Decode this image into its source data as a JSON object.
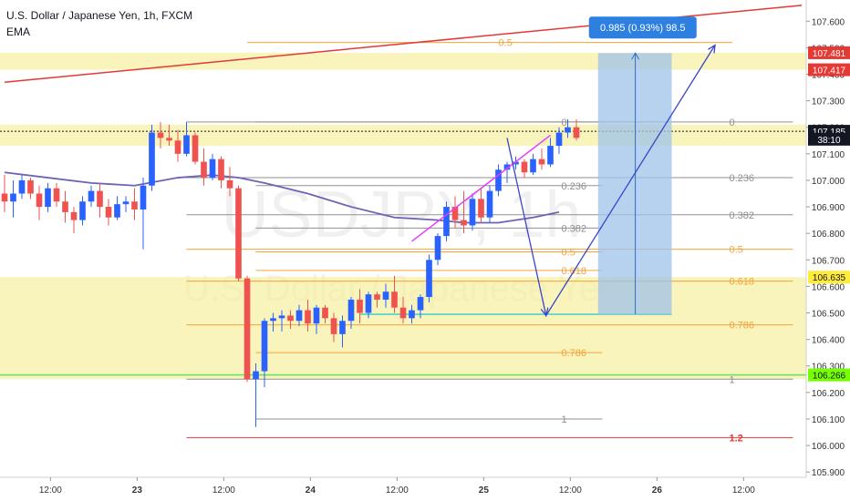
{
  "header": {
    "symbol": "U.S. Dollar / Japanese Yen, 1h, FXCM",
    "indicator": "EMA"
  },
  "watermark": {
    "ticker": "USDJPY, 1h",
    "name": "U.S. Dollar / Japanese Yen"
  },
  "colors": {
    "bull": "#2962ff",
    "bear": "#ef5350",
    "zone": "#f3ec8f",
    "ema": "#6c63b4",
    "fib": "#909090",
    "fib_orange": "#f5a33a",
    "trend_red": "#e53935",
    "wedge": "#e040fb",
    "projection": "#3946c8",
    "target_box": "#9fc3e9",
    "green_level": "#59e85b",
    "axis_text": "#333333"
  },
  "chart_data": {
    "type": "candlestick",
    "ylim": [
      105.88,
      107.68
    ],
    "y_ticks": [
      "107.600",
      "107.500",
      "107.400",
      "107.300",
      "107.200",
      "107.100",
      "107.000",
      "106.900",
      "106.800",
      "106.700",
      "106.600",
      "106.500",
      "106.400",
      "106.300",
      "106.200",
      "106.100",
      "106.000",
      "105.900"
    ],
    "x_ticks": [
      {
        "label": "12:00",
        "index": 5.3
      },
      {
        "label": "23",
        "index": 15.3
      },
      {
        "label": "12:00",
        "index": 25.3
      },
      {
        "label": "24",
        "index": 35.3
      },
      {
        "label": "12:00",
        "index": 45.3
      },
      {
        "label": "25",
        "index": 55.3
      },
      {
        "label": "12:00",
        "index": 65.3
      },
      {
        "label": "26",
        "index": 75.3
      },
      {
        "label": "12:00",
        "index": 85.3
      }
    ],
    "index_range": [
      0,
      92
    ],
    "candles": [
      [
        106.95,
        107.02,
        106.88,
        106.92
      ],
      [
        106.92,
        107.0,
        106.86,
        106.95
      ],
      [
        106.95,
        107.02,
        106.93,
        107.0
      ],
      [
        107.0,
        107.01,
        106.93,
        106.95
      ],
      [
        106.95,
        106.98,
        106.85,
        106.9
      ],
      [
        106.9,
        106.99,
        106.88,
        106.97
      ],
      [
        106.97,
        106.99,
        106.9,
        106.92
      ],
      [
        106.92,
        106.96,
        106.84,
        106.88
      ],
      [
        106.88,
        106.9,
        106.8,
        106.85
      ],
      [
        106.85,
        106.94,
        106.83,
        106.92
      ],
      [
        106.92,
        106.98,
        106.9,
        106.96
      ],
      [
        106.96,
        106.99,
        106.86,
        106.9
      ],
      [
        106.9,
        106.93,
        106.83,
        106.86
      ],
      [
        106.86,
        106.94,
        106.85,
        106.91
      ],
      [
        106.91,
        106.94,
        106.88,
        106.92
      ],
      [
        106.92,
        106.97,
        106.85,
        106.89
      ],
      [
        106.89,
        107.01,
        106.74,
        106.98
      ],
      [
        106.98,
        107.21,
        106.96,
        107.18
      ],
      [
        107.18,
        107.22,
        107.12,
        107.16
      ],
      [
        107.16,
        107.21,
        107.13,
        107.15
      ],
      [
        107.15,
        107.19,
        107.07,
        107.1
      ],
      [
        107.1,
        107.22,
        107.09,
        107.17
      ],
      [
        107.17,
        107.18,
        107.06,
        107.07
      ],
      [
        107.07,
        107.12,
        106.98,
        107.01
      ],
      [
        107.01,
        107.1,
        107.0,
        107.08
      ],
      [
        107.08,
        107.09,
        106.97,
        107.0
      ],
      [
        107.0,
        107.05,
        106.94,
        106.97
      ],
      [
        106.97,
        106.98,
        106.62,
        106.63
      ],
      [
        106.63,
        106.64,
        106.24,
        106.25
      ],
      [
        106.25,
        106.31,
        106.07,
        106.28
      ],
      [
        106.28,
        106.48,
        106.22,
        106.47
      ],
      [
        106.47,
        106.5,
        106.43,
        106.48
      ],
      [
        106.48,
        106.51,
        106.43,
        106.49
      ],
      [
        106.49,
        106.51,
        106.44,
        106.47
      ],
      [
        106.47,
        106.53,
        106.45,
        106.51
      ],
      [
        106.51,
        106.55,
        106.43,
        106.46
      ],
      [
        106.46,
        106.53,
        106.42,
        106.52
      ],
      [
        106.52,
        106.53,
        106.46,
        106.48
      ],
      [
        106.48,
        106.5,
        106.39,
        106.42
      ],
      [
        106.42,
        106.49,
        106.37,
        106.47
      ],
      [
        106.47,
        106.56,
        106.44,
        106.55
      ],
      [
        106.55,
        106.59,
        106.46,
        106.5
      ],
      [
        106.5,
        106.58,
        106.48,
        106.57
      ],
      [
        106.57,
        106.58,
        106.52,
        106.55
      ],
      [
        106.55,
        106.61,
        106.52,
        106.58
      ],
      [
        106.58,
        106.64,
        106.5,
        106.52
      ],
      [
        106.52,
        106.56,
        106.46,
        106.48
      ],
      [
        106.48,
        106.53,
        106.46,
        106.51
      ],
      [
        106.51,
        106.57,
        106.48,
        106.56
      ],
      [
        106.56,
        106.72,
        106.54,
        106.7
      ],
      [
        106.7,
        106.8,
        106.68,
        106.79
      ],
      [
        106.79,
        106.92,
        106.77,
        106.9
      ],
      [
        106.9,
        106.94,
        106.82,
        106.85
      ],
      [
        106.85,
        106.96,
        106.8,
        106.83
      ],
      [
        106.83,
        106.95,
        106.81,
        106.93
      ],
      [
        106.93,
        106.97,
        106.84,
        106.86
      ],
      [
        106.86,
        106.98,
        106.84,
        106.96
      ],
      [
        106.96,
        107.06,
        106.94,
        107.04
      ],
      [
        107.04,
        107.07,
        106.99,
        107.06
      ],
      [
        107.06,
        107.09,
        107.04,
        107.07
      ],
      [
        107.07,
        107.08,
        107.01,
        107.03
      ],
      [
        107.03,
        107.1,
        107.02,
        107.08
      ],
      [
        107.08,
        107.12,
        107.04,
        107.06
      ],
      [
        107.06,
        107.16,
        107.05,
        107.13
      ],
      [
        107.13,
        107.2,
        107.1,
        107.18
      ],
      [
        107.18,
        107.23,
        107.16,
        107.2
      ],
      [
        107.2,
        107.23,
        107.15,
        107.16
      ]
    ],
    "ema": [
      [
        0,
        107.03
      ],
      [
        5,
        107.01
      ],
      [
        10,
        106.99
      ],
      [
        15,
        106.98
      ],
      [
        20,
        107.01
      ],
      [
        24,
        107.02
      ],
      [
        27,
        107.01
      ],
      [
        30,
        106.99
      ],
      [
        35,
        106.95
      ],
      [
        40,
        106.9
      ],
      [
        45,
        106.86
      ],
      [
        50,
        106.85
      ],
      [
        53,
        106.84
      ],
      [
        57,
        106.84
      ],
      [
        61,
        106.86
      ],
      [
        64,
        106.88
      ]
    ],
    "zones": [
      {
        "from": 107.417,
        "to": 107.481
      },
      {
        "from": 107.13,
        "to": 107.21
      },
      {
        "from": 106.25,
        "to": 106.635
      }
    ],
    "fib_left": {
      "x_from": 29,
      "x_to": 69,
      "levels": [
        {
          "label": "0",
          "value": 107.22,
          "color": "fib"
        },
        {
          "label": "0.236",
          "value": 106.98,
          "color": "fib"
        },
        {
          "label": "0.382",
          "value": 106.82,
          "color": "fib"
        },
        {
          "label": "0.5",
          "value": 106.73,
          "color": "fib_orange"
        },
        {
          "label": "0.618",
          "value": 106.66,
          "color": "fib_orange"
        },
        {
          "label": "0.786",
          "value": 106.35,
          "color": "fib_orange"
        },
        {
          "label": "1",
          "value": 106.1,
          "color": "fib"
        }
      ]
    },
    "fib_right": {
      "x_from": 21,
      "x_to": 91,
      "levels": [
        {
          "label": "0",
          "value": 107.22,
          "color": "fib"
        },
        {
          "label": "0.236",
          "value": 107.01,
          "color": "fib"
        },
        {
          "label": "0.382",
          "value": 106.87,
          "color": "fib"
        },
        {
          "label": "0.5",
          "value": 106.74,
          "color": "fib_orange"
        },
        {
          "label": "0.618",
          "value": 106.62,
          "color": "fib_orange"
        },
        {
          "label": "0.786",
          "value": 106.455,
          "color": "fib_orange"
        },
        {
          "label": "1",
          "value": 106.25,
          "color": "fib"
        },
        {
          "label": "1.2",
          "value": 106.03,
          "color": "trend_red"
        }
      ]
    },
    "extra_level": {
      "label": "0.5",
      "value": 107.52
    },
    "trendline": {
      "from": [
        0,
        107.37
      ],
      "to": [
        92,
        107.66
      ]
    },
    "green_level": 106.266,
    "wedge_line": {
      "from": [
        47,
        106.77
      ],
      "to": [
        63,
        107.17
      ]
    },
    "cyan_line": {
      "from": [
        41,
        106.495
      ],
      "to": [
        77,
        106.495
      ]
    },
    "projection_path": [
      [
        58,
        107.16
      ],
      [
        62.5,
        106.49
      ],
      [
        82,
        107.51
      ]
    ],
    "target_box": {
      "x_from": 68.5,
      "x_to": 77,
      "y_from": 106.495,
      "y_to": 107.48
    },
    "target_arrow": {
      "x": 72.8,
      "from": 106.495,
      "to": 107.48
    },
    "measure_label": "0.985 (0.93%) 98.5",
    "price_labels": [
      {
        "text": "107.481",
        "value": 107.481,
        "bg": "#e53935",
        "fg": "#ffffff"
      },
      {
        "text": "107.417",
        "value": 107.417,
        "bg": "#e53935",
        "fg": "#ffffff"
      },
      {
        "text": "107.185",
        "value": 107.185,
        "bg": "#131722",
        "fg": "#ffffff"
      },
      {
        "text": "38:10",
        "value": 107.155,
        "bg": "#131722",
        "fg": "#ffffff"
      },
      {
        "text": "106.635",
        "value": 106.635,
        "bg": "#ffeb3b",
        "fg": "#131722"
      },
      {
        "text": "106.266",
        "value": 106.266,
        "bg": "#76ff03",
        "fg": "#131722"
      }
    ],
    "current_price": 107.185
  }
}
